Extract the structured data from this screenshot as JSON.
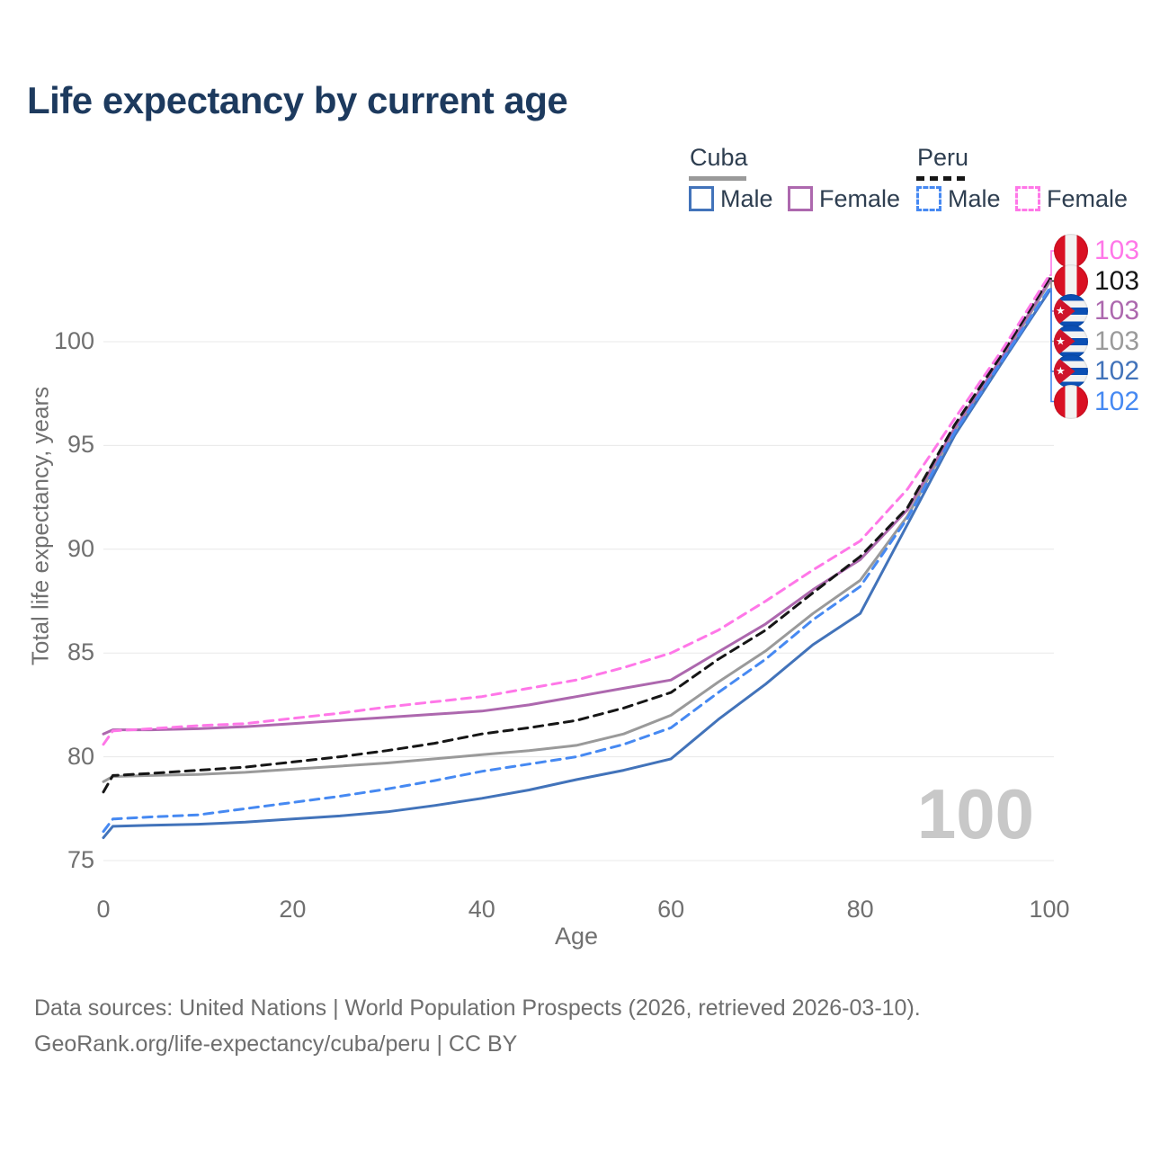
{
  "title": "Life expectancy by current age",
  "legend": {
    "cuba": {
      "name": "Cuba",
      "male": "Male",
      "female": "Female"
    },
    "peru": {
      "name": "Peru",
      "male": "Male",
      "female": "Female"
    }
  },
  "axes": {
    "x_title": "Age",
    "y_title": "Total life expectancy, years"
  },
  "watermark": "100",
  "footer": {
    "line1": "Data sources: United Nations | World Population Prospects (2026, retrieved 2026-03-10).",
    "line2": "GeoRank.org/life-expectancy/cuba/peru | CC BY"
  },
  "colors": {
    "title": "#1d3a5e",
    "legend_text": "#2e3e50",
    "tick_label": "#707070",
    "grid": "#e8e8e8",
    "footer_text": "#6e6e6e",
    "watermark": "#c8c8c8",
    "cuba_male": "#4273ba",
    "cuba_female": "#ad68ae",
    "cuba_all": "#9a9a9a",
    "peru_male": "#4689f2",
    "peru_female": "#ff77e8",
    "peru_all": "#161616",
    "peru_flag_red": "#d91023",
    "cuba_flag_blue": "#0b4fb4",
    "cuba_flag_red": "#cf142b",
    "flag_white": "#f2f2f2"
  },
  "end_labels": [
    {
      "key": "peru_female",
      "flag": "peru",
      "value": "103"
    },
    {
      "key": "peru_all",
      "flag": "peru",
      "value": "103"
    },
    {
      "key": "cuba_female",
      "flag": "cuba",
      "value": "103"
    },
    {
      "key": "cuba_all",
      "flag": "cuba",
      "value": "103"
    },
    {
      "key": "cuba_male",
      "flag": "cuba",
      "value": "102"
    },
    {
      "key": "peru_male",
      "flag": "peru",
      "value": "102"
    }
  ],
  "chart_data": {
    "type": "line",
    "title": "Life expectancy by current age",
    "xlabel": "Age",
    "ylabel": "Total life expectancy, years",
    "xlim": [
      0,
      100
    ],
    "ylim": [
      75,
      103.5
    ],
    "x_ticks": [
      0,
      20,
      40,
      60,
      80,
      100
    ],
    "y_ticks": [
      75,
      80,
      85,
      90,
      95,
      100
    ],
    "grid": "horizontal",
    "legend_position": "top-right",
    "x": [
      0,
      1,
      5,
      10,
      15,
      20,
      25,
      30,
      35,
      40,
      45,
      50,
      55,
      60,
      65,
      70,
      75,
      80,
      85,
      90,
      95,
      100
    ],
    "series": [
      {
        "key": "cuba_all",
        "name": "Cuba",
        "country": "Cuba",
        "group": "All",
        "style": "solid",
        "color": "#9a9a9a",
        "end_label": "103",
        "values": [
          78.8,
          79.05,
          79.1,
          79.15,
          79.25,
          79.4,
          79.55,
          79.7,
          79.9,
          80.1,
          80.3,
          80.55,
          81.1,
          82.0,
          83.6,
          85.1,
          86.9,
          88.5,
          91.6,
          95.75,
          99.15,
          102.85
        ]
      },
      {
        "key": "cuba_male",
        "name": "Cuba Male",
        "country": "Cuba",
        "group": "Male",
        "style": "solid",
        "color": "#4273ba",
        "end_label": "102",
        "values": [
          76.1,
          76.65,
          76.7,
          76.75,
          76.85,
          77.0,
          77.15,
          77.35,
          77.65,
          78.0,
          78.4,
          78.9,
          79.35,
          79.9,
          81.8,
          83.5,
          85.4,
          86.9,
          91.2,
          95.5,
          99.0,
          102.45
        ]
      },
      {
        "key": "cuba_female",
        "name": "Cuba Female",
        "country": "Cuba",
        "group": "Female",
        "style": "solid",
        "color": "#ad68ae",
        "end_label": "103",
        "values": [
          81.1,
          81.3,
          81.3,
          81.35,
          81.45,
          81.6,
          81.75,
          81.9,
          82.05,
          82.2,
          82.5,
          82.9,
          83.3,
          83.7,
          85.05,
          86.4,
          88.05,
          89.5,
          91.9,
          95.85,
          99.25,
          102.95
        ]
      },
      {
        "key": "peru_all",
        "name": "Peru",
        "country": "Peru",
        "group": "All",
        "style": "dashed",
        "color": "#161616",
        "end_label": "103",
        "values": [
          78.3,
          79.1,
          79.2,
          79.35,
          79.5,
          79.75,
          80.0,
          80.3,
          80.65,
          81.1,
          81.4,
          81.75,
          82.35,
          83.1,
          84.7,
          86.1,
          87.9,
          89.65,
          92.0,
          96.0,
          99.4,
          103.05
        ]
      },
      {
        "key": "peru_male",
        "name": "Peru Male",
        "country": "Peru",
        "group": "Male",
        "style": "dashed",
        "color": "#4689f2",
        "end_label": "102",
        "values": [
          76.4,
          77.0,
          77.1,
          77.2,
          77.5,
          77.8,
          78.1,
          78.45,
          78.85,
          79.3,
          79.65,
          80.0,
          80.6,
          81.4,
          83.1,
          84.7,
          86.6,
          88.2,
          91.5,
          95.65,
          99.1,
          102.55
        ]
      },
      {
        "key": "peru_female",
        "name": "Peru Female",
        "country": "Peru",
        "group": "Female",
        "style": "dashed",
        "color": "#ff77e8",
        "end_label": "103",
        "values": [
          80.6,
          81.25,
          81.35,
          81.5,
          81.6,
          81.85,
          82.1,
          82.4,
          82.65,
          82.9,
          83.3,
          83.7,
          84.3,
          85.0,
          86.1,
          87.5,
          89.0,
          90.4,
          92.9,
          96.3,
          99.6,
          103.2
        ]
      }
    ]
  }
}
